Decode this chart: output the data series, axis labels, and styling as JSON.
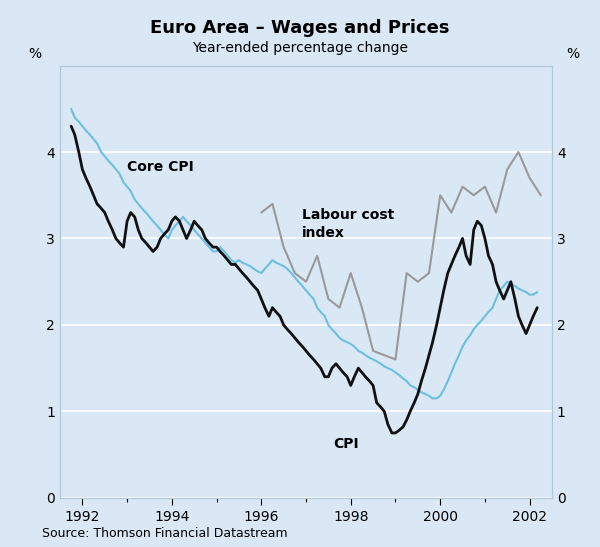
{
  "title": "Euro Area – Wages and Prices",
  "subtitle": "Year-ended percentage change",
  "ylabel_left": "%",
  "ylabel_right": "%",
  "source": "Source: Thomson Financial Datastream",
  "background_color": "#dae8f5",
  "ylim": [
    0,
    5
  ],
  "yticks": [
    0,
    1,
    2,
    3,
    4
  ],
  "xlim_start": 1991.5,
  "xlim_end": 2002.5,
  "core_cpi_color": "#6bbfdf",
  "cpi_color": "#111111",
  "labour_color": "#999999",
  "core_cpi_lw": 1.5,
  "cpi_lw": 2.0,
  "labour_lw": 1.5,
  "core_cpi_label": "Core CPI",
  "cpi_label": "CPI",
  "labour_label": "Labour cost\nindex",
  "core_cpi_x": [
    1991.75,
    1991.83,
    1991.92,
    1992.0,
    1992.08,
    1992.17,
    1992.25,
    1992.33,
    1992.42,
    1992.5,
    1992.58,
    1992.67,
    1992.75,
    1992.83,
    1992.92,
    1993.0,
    1993.08,
    1993.17,
    1993.25,
    1993.33,
    1993.42,
    1993.5,
    1993.58,
    1993.67,
    1993.75,
    1993.83,
    1993.92,
    1994.0,
    1994.08,
    1994.17,
    1994.25,
    1994.33,
    1994.42,
    1994.5,
    1994.58,
    1994.67,
    1994.75,
    1994.83,
    1994.92,
    1995.0,
    1995.08,
    1995.17,
    1995.25,
    1995.33,
    1995.42,
    1995.5,
    1995.58,
    1995.67,
    1995.75,
    1995.83,
    1995.92,
    1996.0,
    1996.08,
    1996.17,
    1996.25,
    1996.33,
    1996.42,
    1996.5,
    1996.58,
    1996.67,
    1996.75,
    1996.83,
    1996.92,
    1997.0,
    1997.08,
    1997.17,
    1997.25,
    1997.33,
    1997.42,
    1997.5,
    1997.58,
    1997.67,
    1997.75,
    1997.83,
    1997.92,
    1998.0,
    1998.08,
    1998.17,
    1998.25,
    1998.33,
    1998.42,
    1998.5,
    1998.58,
    1998.67,
    1998.75,
    1998.83,
    1998.92,
    1999.0,
    1999.08,
    1999.17,
    1999.25,
    1999.33,
    1999.42,
    1999.5,
    1999.58,
    1999.67,
    1999.75,
    1999.83,
    1999.92,
    2000.0,
    2000.08,
    2000.17,
    2000.25,
    2000.33,
    2000.42,
    2000.5,
    2000.58,
    2000.67,
    2000.75,
    2000.83,
    2000.92,
    2001.0,
    2001.08,
    2001.17,
    2001.25,
    2001.33,
    2001.42,
    2001.5,
    2001.58,
    2001.67,
    2001.75,
    2001.83,
    2001.92,
    2002.0,
    2002.08,
    2002.17
  ],
  "core_cpi_y": [
    4.5,
    4.4,
    4.35,
    4.3,
    4.25,
    4.2,
    4.15,
    4.1,
    4.0,
    3.95,
    3.9,
    3.85,
    3.8,
    3.75,
    3.65,
    3.6,
    3.55,
    3.45,
    3.4,
    3.35,
    3.3,
    3.25,
    3.2,
    3.15,
    3.1,
    3.05,
    3.0,
    3.1,
    3.15,
    3.2,
    3.25,
    3.2,
    3.15,
    3.1,
    3.05,
    3.0,
    2.95,
    2.9,
    2.85,
    2.85,
    2.9,
    2.85,
    2.8,
    2.75,
    2.72,
    2.75,
    2.72,
    2.7,
    2.68,
    2.65,
    2.62,
    2.6,
    2.65,
    2.7,
    2.75,
    2.72,
    2.7,
    2.68,
    2.65,
    2.6,
    2.55,
    2.5,
    2.45,
    2.4,
    2.35,
    2.3,
    2.2,
    2.15,
    2.1,
    2.0,
    1.95,
    1.9,
    1.85,
    1.82,
    1.8,
    1.78,
    1.75,
    1.7,
    1.68,
    1.65,
    1.62,
    1.6,
    1.58,
    1.55,
    1.52,
    1.5,
    1.48,
    1.45,
    1.42,
    1.38,
    1.35,
    1.3,
    1.28,
    1.25,
    1.22,
    1.2,
    1.18,
    1.15,
    1.15,
    1.18,
    1.25,
    1.35,
    1.45,
    1.55,
    1.65,
    1.75,
    1.82,
    1.88,
    1.95,
    2.0,
    2.05,
    2.1,
    2.15,
    2.2,
    2.3,
    2.4,
    2.45,
    2.5,
    2.48,
    2.45,
    2.42,
    2.4,
    2.38,
    2.35,
    2.35,
    2.38
  ],
  "cpi_x": [
    1991.75,
    1991.83,
    1991.92,
    1992.0,
    1992.08,
    1992.17,
    1992.25,
    1992.33,
    1992.42,
    1992.5,
    1992.58,
    1992.67,
    1992.75,
    1992.83,
    1992.92,
    1993.0,
    1993.08,
    1993.17,
    1993.25,
    1993.33,
    1993.42,
    1993.5,
    1993.58,
    1993.67,
    1993.75,
    1993.83,
    1993.92,
    1994.0,
    1994.08,
    1994.17,
    1994.25,
    1994.33,
    1994.42,
    1994.5,
    1994.58,
    1994.67,
    1994.75,
    1994.83,
    1994.92,
    1995.0,
    1995.08,
    1995.17,
    1995.25,
    1995.33,
    1995.42,
    1995.5,
    1995.58,
    1995.67,
    1995.75,
    1995.83,
    1995.92,
    1996.0,
    1996.08,
    1996.17,
    1996.25,
    1996.33,
    1996.42,
    1996.5,
    1996.58,
    1996.67,
    1996.75,
    1996.83,
    1996.92,
    1997.0,
    1997.08,
    1997.17,
    1997.25,
    1997.33,
    1997.42,
    1997.5,
    1997.58,
    1997.67,
    1997.75,
    1997.83,
    1997.92,
    1998.0,
    1998.08,
    1998.17,
    1998.25,
    1998.33,
    1998.42,
    1998.5,
    1998.58,
    1998.67,
    1998.75,
    1998.83,
    1998.92,
    1999.0,
    1999.08,
    1999.17,
    1999.25,
    1999.33,
    1999.42,
    1999.5,
    1999.58,
    1999.67,
    1999.75,
    1999.83,
    1999.92,
    2000.0,
    2000.08,
    2000.17,
    2000.25,
    2000.33,
    2000.42,
    2000.5,
    2000.58,
    2000.67,
    2000.75,
    2000.83,
    2000.92,
    2001.0,
    2001.08,
    2001.17,
    2001.25,
    2001.33,
    2001.42,
    2001.5,
    2001.58,
    2001.67,
    2001.75,
    2001.83,
    2001.92,
    2002.0,
    2002.08,
    2002.17
  ],
  "cpi_y": [
    4.3,
    4.2,
    4.0,
    3.8,
    3.7,
    3.6,
    3.5,
    3.4,
    3.35,
    3.3,
    3.2,
    3.1,
    3.0,
    2.95,
    2.9,
    3.2,
    3.3,
    3.25,
    3.1,
    3.0,
    2.95,
    2.9,
    2.85,
    2.9,
    3.0,
    3.05,
    3.1,
    3.2,
    3.25,
    3.2,
    3.1,
    3.0,
    3.1,
    3.2,
    3.15,
    3.1,
    3.0,
    2.95,
    2.9,
    2.9,
    2.85,
    2.8,
    2.75,
    2.7,
    2.7,
    2.65,
    2.6,
    2.55,
    2.5,
    2.45,
    2.4,
    2.3,
    2.2,
    2.1,
    2.2,
    2.15,
    2.1,
    2.0,
    1.95,
    1.9,
    1.85,
    1.8,
    1.75,
    1.7,
    1.65,
    1.6,
    1.55,
    1.5,
    1.4,
    1.4,
    1.5,
    1.55,
    1.5,
    1.45,
    1.4,
    1.3,
    1.4,
    1.5,
    1.45,
    1.4,
    1.35,
    1.3,
    1.1,
    1.05,
    1.0,
    0.85,
    0.75,
    0.75,
    0.78,
    0.82,
    0.9,
    1.0,
    1.1,
    1.2,
    1.35,
    1.5,
    1.65,
    1.8,
    2.0,
    2.2,
    2.4,
    2.6,
    2.7,
    2.8,
    2.9,
    3.0,
    2.8,
    2.7,
    3.1,
    3.2,
    3.15,
    3.0,
    2.8,
    2.7,
    2.5,
    2.4,
    2.3,
    2.4,
    2.5,
    2.3,
    2.1,
    2.0,
    1.9,
    2.0,
    2.1,
    2.2
  ],
  "labour_x": [
    1996.0,
    1996.25,
    1996.5,
    1996.75,
    1997.0,
    1997.25,
    1997.5,
    1997.75,
    1998.0,
    1998.25,
    1998.5,
    1998.75,
    1999.0,
    1999.25,
    1999.5,
    1999.75,
    2000.0,
    2000.25,
    2000.5,
    2000.75,
    2001.0,
    2001.25,
    2001.5,
    2001.75,
    2002.0,
    2002.25
  ],
  "labour_y": [
    3.3,
    3.4,
    2.9,
    2.6,
    2.5,
    2.8,
    2.3,
    2.2,
    2.6,
    2.2,
    1.7,
    1.65,
    1.6,
    2.6,
    2.5,
    2.6,
    3.5,
    3.3,
    3.6,
    3.5,
    3.6,
    3.3,
    3.8,
    4.0,
    3.7,
    3.5
  ]
}
